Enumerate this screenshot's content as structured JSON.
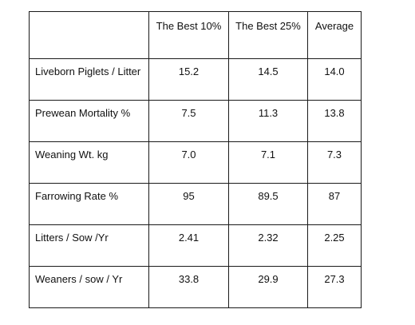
{
  "table": {
    "corner": "",
    "columns": [
      "The Best 10%",
      "The Best 25%",
      "Average"
    ],
    "rows": [
      {
        "label": "Liveborn Piglets / Litter",
        "values": [
          "15.2",
          "14.5",
          "14.0"
        ]
      },
      {
        "label": "Prewean Mortality %",
        "values": [
          "7.5",
          "11.3",
          "13.8"
        ]
      },
      {
        "label": "Weaning Wt. kg",
        "values": [
          "7.0",
          "7.1",
          "7.3"
        ]
      },
      {
        "label": "Farrowing Rate %",
        "values": [
          "95",
          "89.5",
          "87"
        ]
      },
      {
        "label": "Litters / Sow /Yr",
        "values": [
          "2.41",
          "2.32",
          "2.25"
        ]
      },
      {
        "label": "Weaners / sow / Yr",
        "values": [
          "33.8",
          "29.9",
          "27.3"
        ]
      }
    ]
  }
}
